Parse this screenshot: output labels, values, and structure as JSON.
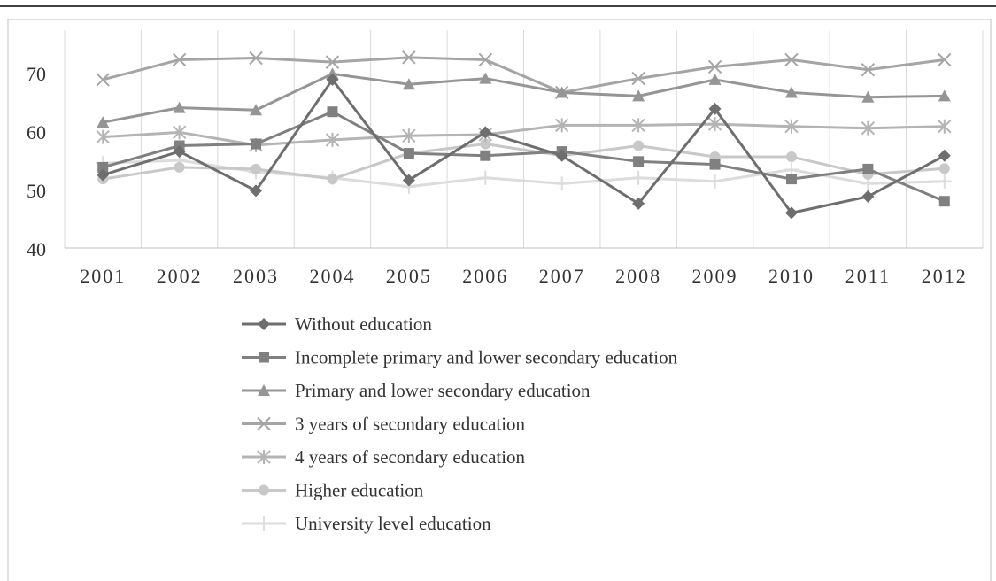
{
  "chart_data": {
    "type": "line",
    "title": "",
    "xlabel": "",
    "ylabel": "",
    "ylim": [
      40,
      75
    ],
    "yticks": [
      40,
      50,
      60,
      70
    ],
    "grid": "vertical",
    "legend": "bottom",
    "categories": [
      "2001",
      "2002",
      "2003",
      "2004",
      "2005",
      "2006",
      "2007",
      "2008",
      "2009",
      "2010",
      "2011",
      "2012"
    ],
    "series": [
      {
        "name": "Without education",
        "marker": "diamond",
        "color": "#6e6e6e",
        "values": [
          52.5,
          56.5,
          49.8,
          68.8,
          51.6,
          59.8,
          55.8,
          47.6,
          63.8,
          46.0,
          48.8,
          55.8
        ]
      },
      {
        "name": "Incomplete primary and lower secondary education",
        "marker": "square",
        "color": "#808080",
        "values": [
          53.8,
          57.5,
          57.8,
          63.3,
          56.2,
          55.8,
          56.5,
          54.8,
          54.3,
          51.8,
          53.5,
          48.0
        ]
      },
      {
        "name": "Primary and lower secondary education",
        "marker": "triangle",
        "color": "#959595",
        "values": [
          61.5,
          64.0,
          63.6,
          69.8,
          68.0,
          69.0,
          66.6,
          66.0,
          68.8,
          66.6,
          65.8,
          66.0
        ]
      },
      {
        "name": "3 years of secondary education",
        "marker": "x",
        "color": "#a5a5a5",
        "values": [
          68.8,
          72.2,
          72.5,
          71.8,
          72.6,
          72.2,
          66.6,
          69.0,
          71.0,
          72.2,
          70.5,
          72.2
        ]
      },
      {
        "name": "4 years of secondary education",
        "marker": "star",
        "color": "#b4b4b4",
        "values": [
          59.0,
          59.8,
          57.6,
          58.5,
          59.2,
          59.4,
          61.0,
          61.0,
          61.2,
          60.8,
          60.5,
          60.8
        ]
      },
      {
        "name": "Higher education",
        "marker": "circle",
        "color": "#c8c8c8",
        "values": [
          51.8,
          53.8,
          53.5,
          51.8,
          56.2,
          57.8,
          55.8,
          57.5,
          55.6,
          55.6,
          52.6,
          53.6
        ]
      },
      {
        "name": "University level education",
        "marker": "plus",
        "color": "#dcdcdc",
        "values": [
          54.5,
          55.0,
          53.0,
          52.0,
          50.5,
          52.0,
          51.0,
          52.0,
          51.4,
          53.4,
          51.0,
          51.4
        ]
      }
    ]
  }
}
